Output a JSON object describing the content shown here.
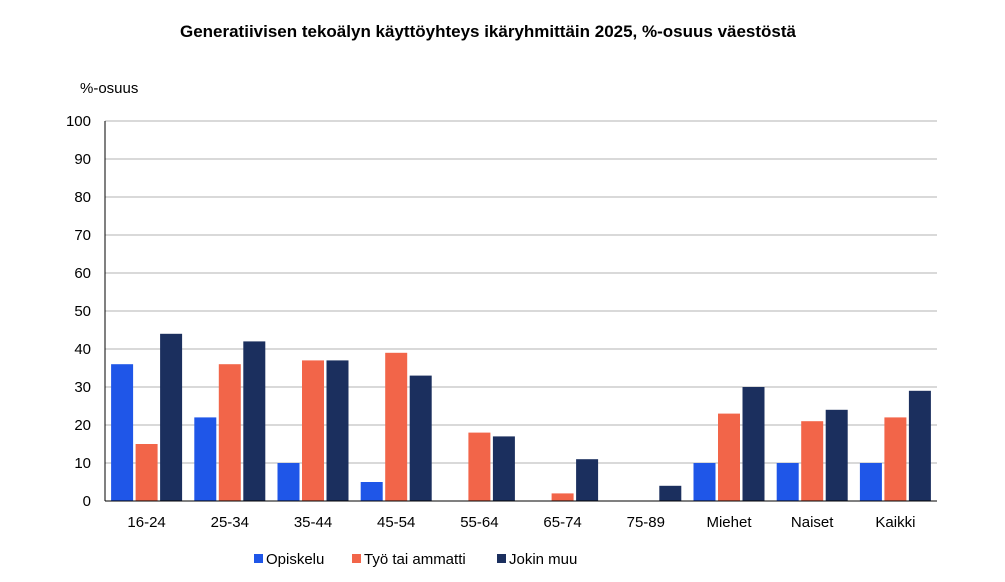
{
  "chart_data": {
    "type": "bar",
    "title": "Generatiivisen tekoälyn käyttöyhteys ikäryhmittäin 2025, %-osuus väestöstä",
    "ylabel": "%-osuus",
    "xlabel": "",
    "ylim": [
      0,
      100
    ],
    "yticks": [
      "0",
      "10",
      "20",
      "30",
      "40",
      "50",
      "60",
      "70",
      "80",
      "90",
      "100"
    ],
    "grid": true,
    "legend_position": "bottom",
    "categories": [
      "16-24",
      "25-34",
      "35-44",
      "45-54",
      "55-64",
      "65-74",
      "75-89",
      "Miehet",
      "Naiset",
      "Kaikki"
    ],
    "series": [
      {
        "name": "Opiskelu",
        "color": "#1f56e8",
        "values": [
          36,
          22,
          10,
          5,
          0,
          0,
          0,
          10,
          10,
          10
        ]
      },
      {
        "name": "Työ tai ammatti",
        "color": "#f26549",
        "values": [
          15,
          36,
          37,
          39,
          18,
          2,
          0,
          23,
          21,
          22
        ]
      },
      {
        "name": "Jokin muu",
        "color": "#1b2f5e",
        "values": [
          44,
          42,
          37,
          33,
          17,
          11,
          4,
          30,
          24,
          29
        ]
      }
    ]
  }
}
